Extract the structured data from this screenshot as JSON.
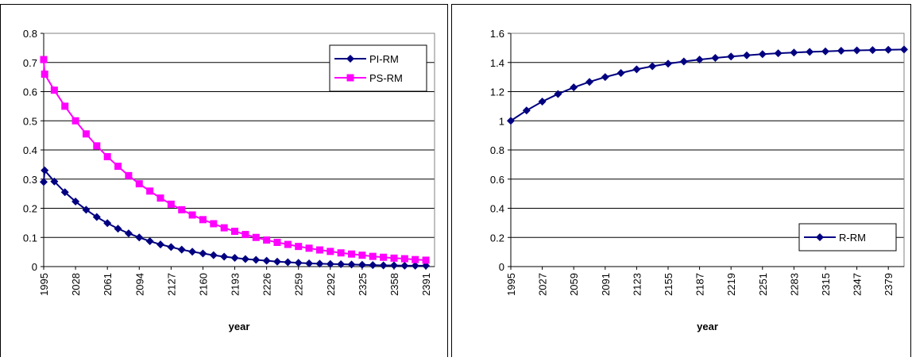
{
  "chart_data": [
    {
      "type": "line",
      "xlabel": "year",
      "x": [
        1995,
        1996,
        2006,
        2017,
        2028,
        2039,
        2050,
        2061,
        2072,
        2083,
        2094,
        2105,
        2116,
        2127,
        2138,
        2149,
        2160,
        2171,
        2182,
        2193,
        2204,
        2215,
        2226,
        2237,
        2248,
        2259,
        2270,
        2281,
        2292,
        2303,
        2314,
        2325,
        2336,
        2347,
        2358,
        2369,
        2380,
        2391
      ],
      "series": [
        {
          "name": "PI-RM",
          "color": "#000080",
          "marker": "diamond",
          "values": [
            0.29,
            0.33,
            0.292,
            0.255,
            0.223,
            0.195,
            0.17,
            0.149,
            0.13,
            0.114,
            0.1,
            0.087,
            0.076,
            0.067,
            0.058,
            0.051,
            0.045,
            0.039,
            0.034,
            0.03,
            0.026,
            0.023,
            0.02,
            0.017,
            0.015,
            0.013,
            0.011,
            0.01,
            0.009,
            0.008,
            0.007,
            0.006,
            0.005,
            0.004,
            0.004,
            0.003,
            0.003,
            0.003
          ]
        },
        {
          "name": "PS-RM",
          "color": "#ff00ff",
          "marker": "square",
          "values": [
            0.71,
            0.66,
            0.605,
            0.55,
            0.5,
            0.455,
            0.414,
            0.377,
            0.344,
            0.312,
            0.284,
            0.259,
            0.235,
            0.214,
            0.195,
            0.177,
            0.161,
            0.147,
            0.133,
            0.121,
            0.11,
            0.1,
            0.091,
            0.083,
            0.076,
            0.069,
            0.063,
            0.057,
            0.052,
            0.047,
            0.043,
            0.039,
            0.035,
            0.032,
            0.029,
            0.027,
            0.024,
            0.022
          ]
        }
      ],
      "xlim": [
        1995,
        2400
      ],
      "xticks": [
        1995,
        2028,
        2061,
        2094,
        2127,
        2160,
        2193,
        2226,
        2259,
        2292,
        2325,
        2358,
        2391
      ],
      "ylim": [
        0,
        0.8
      ],
      "yticks": [
        0,
        0.1,
        0.2,
        0.3,
        0.4,
        0.5,
        0.6,
        0.7,
        0.8
      ],
      "grid": true,
      "legend": "upper right"
    },
    {
      "type": "line",
      "xlabel": "year",
      "x": [
        1995,
        2011,
        2027,
        2043,
        2059,
        2075,
        2091,
        2107,
        2123,
        2139,
        2155,
        2171,
        2187,
        2203,
        2219,
        2235,
        2251,
        2267,
        2283,
        2299,
        2315,
        2331,
        2347,
        2363,
        2379,
        2395
      ],
      "series": [
        {
          "name": "R-RM",
          "color": "#000080",
          "marker": "diamond",
          "values": [
            1.0,
            1.071,
            1.132,
            1.184,
            1.229,
            1.267,
            1.3,
            1.328,
            1.353,
            1.374,
            1.392,
            1.407,
            1.42,
            1.431,
            1.441,
            1.449,
            1.457,
            1.463,
            1.468,
            1.473,
            1.476,
            1.48,
            1.483,
            1.485,
            1.487,
            1.489
          ]
        }
      ],
      "xlim": [
        1995,
        2395
      ],
      "xticks": [
        1995,
        2027,
        2059,
        2091,
        2123,
        2155,
        2187,
        2219,
        2251,
        2283,
        2315,
        2347,
        2379
      ],
      "ylim": [
        0,
        1.6
      ],
      "yticks": [
        0,
        0.2,
        0.4,
        0.6,
        0.8,
        1,
        1.2,
        1.4,
        1.6
      ],
      "grid": true,
      "legend": "lower right"
    }
  ]
}
